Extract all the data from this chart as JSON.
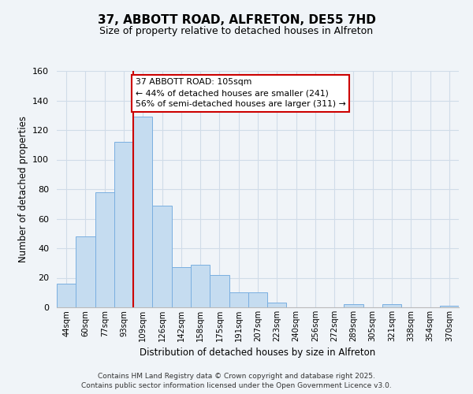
{
  "title": "37, ABBOTT ROAD, ALFRETON, DE55 7HD",
  "subtitle": "Size of property relative to detached houses in Alfreton",
  "xlabel": "Distribution of detached houses by size in Alfreton",
  "ylabel": "Number of detached properties",
  "bar_labels": [
    "44sqm",
    "60sqm",
    "77sqm",
    "93sqm",
    "109sqm",
    "126sqm",
    "142sqm",
    "158sqm",
    "175sqm",
    "191sqm",
    "207sqm",
    "223sqm",
    "240sqm",
    "256sqm",
    "272sqm",
    "289sqm",
    "305sqm",
    "321sqm",
    "338sqm",
    "354sqm",
    "370sqm"
  ],
  "bar_values": [
    16,
    48,
    78,
    112,
    129,
    69,
    27,
    29,
    22,
    10,
    10,
    3,
    0,
    0,
    0,
    2,
    0,
    2,
    0,
    0,
    1
  ],
  "bar_color": "#c5dcf0",
  "bar_edge_color": "#7aafe0",
  "vline_color": "#cc0000",
  "vline_index": 4,
  "annotation_title": "37 ABBOTT ROAD: 105sqm",
  "annotation_line1": "← 44% of detached houses are smaller (241)",
  "annotation_line2": "56% of semi-detached houses are larger (311) →",
  "annotation_box_color": "#ffffff",
  "annotation_box_edge": "#cc0000",
  "ylim": [
    0,
    160
  ],
  "yticks": [
    0,
    20,
    40,
    60,
    80,
    100,
    120,
    140,
    160
  ],
  "footnote1": "Contains HM Land Registry data © Crown copyright and database right 2025.",
  "footnote2": "Contains public sector information licensed under the Open Government Licence v3.0.",
  "bg_color": "#f0f4f8",
  "grid_color": "#d0dce8"
}
